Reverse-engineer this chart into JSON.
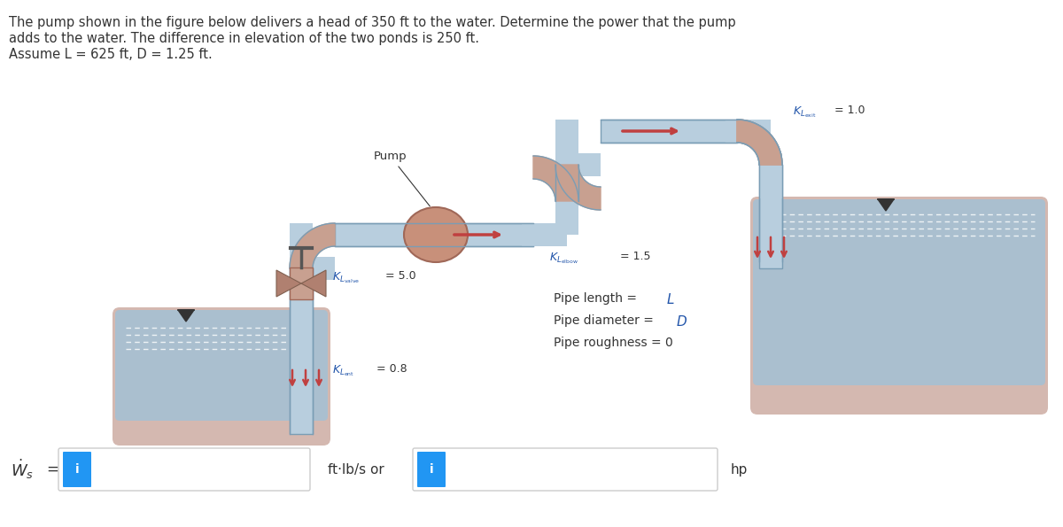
{
  "title_line1": "The pump shown in the figure below delivers a head of 350 ft to the water. Determine the power that the pump",
  "title_line2": "adds to the water. The difference in elevation of the two ponds is 250 ft.",
  "title_line3": "Assume L = 625 ft, D = 1.25 ft.",
  "bg_color": "#ffffff",
  "pipe_color": "#b8cede",
  "pipe_edge_color": "#7a9db5",
  "elbow_color": "#c8a090",
  "pump_color": "#c8907a",
  "water_color": "#aabfcf",
  "shore_color": "#d4b8b0",
  "arrow_color": "#c04040",
  "text_color": "#333333",
  "blue_text_color": "#2255aa",
  "box_color": "#2196F3",
  "dashed_color": "#8899aa"
}
